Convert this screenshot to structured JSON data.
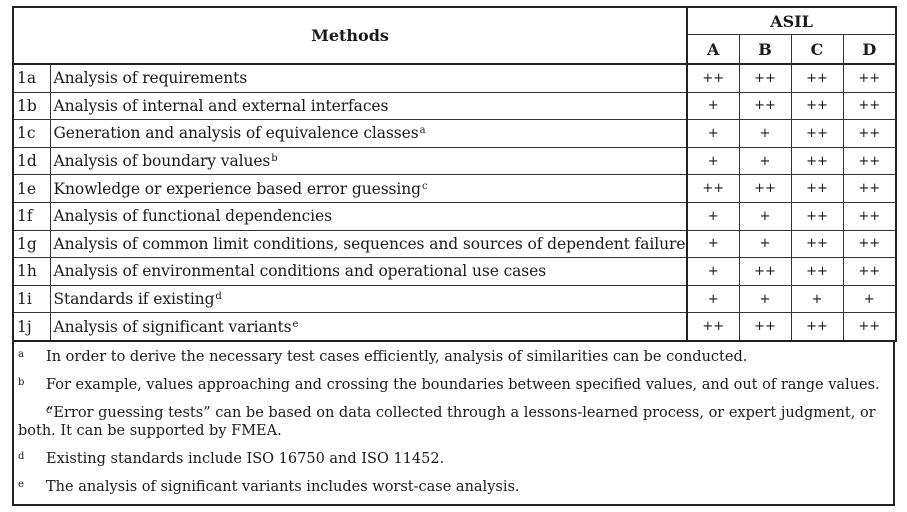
{
  "header": {
    "methods": "Methods",
    "asil": "ASIL",
    "levels": [
      "A",
      "B",
      "C",
      "D"
    ]
  },
  "rows": [
    {
      "id": "1a",
      "method": "Analysis of requirements",
      "note": "",
      "ratings": [
        "++",
        "++",
        "++",
        "++"
      ]
    },
    {
      "id": "1b",
      "method": "Analysis of internal and external interfaces",
      "note": "",
      "ratings": [
        "+",
        "++",
        "++",
        "++"
      ]
    },
    {
      "id": "1c",
      "method": "Generation and analysis of equivalence classes",
      "note": "a",
      "ratings": [
        "+",
        "+",
        "++",
        "++"
      ]
    },
    {
      "id": "1d",
      "method": "Analysis of boundary values",
      "note": "b",
      "ratings": [
        "+",
        "+",
        "++",
        "++"
      ]
    },
    {
      "id": "1e",
      "method": "Knowledge or experience based error guessing",
      "note": "c",
      "ratings": [
        "++",
        "++",
        "++",
        "++"
      ]
    },
    {
      "id": "1f",
      "method": "Analysis of functional dependencies",
      "note": "",
      "ratings": [
        "+",
        "+",
        "++",
        "++"
      ]
    },
    {
      "id": "1g",
      "method": "Analysis of common limit conditions, sequences and sources of dependent failures",
      "note": "",
      "ratings": [
        "+",
        "+",
        "++",
        "++"
      ]
    },
    {
      "id": "1h",
      "method": "Analysis of environmental conditions and operational use cases",
      "note": "",
      "ratings": [
        "+",
        "++",
        "++",
        "++"
      ]
    },
    {
      "id": "1i",
      "method": "Standards if existing",
      "note": "d",
      "ratings": [
        "+",
        "+",
        "+",
        "+"
      ]
    },
    {
      "id": "1j",
      "method": "Analysis of significant variants",
      "note": "e",
      "ratings": [
        "++",
        "++",
        "++",
        "++"
      ]
    }
  ],
  "footnotes": [
    {
      "mark": "a",
      "text": "In order to derive the necessary test cases efficiently, analysis of similarities can be conducted."
    },
    {
      "mark": "b",
      "text": "For example, values approaching and crossing the boundaries between specified values, and out of range values."
    },
    {
      "mark": "c",
      "text": "“Error guessing tests” can be based on data collected through a lessons-learned process, or expert judgment, or both. It can be supported by FMEA."
    },
    {
      "mark": "d",
      "text": "Existing standards include ISO 16750 and ISO 11452."
    },
    {
      "mark": "e",
      "text": "The analysis of significant variants includes worst-case analysis."
    }
  ]
}
